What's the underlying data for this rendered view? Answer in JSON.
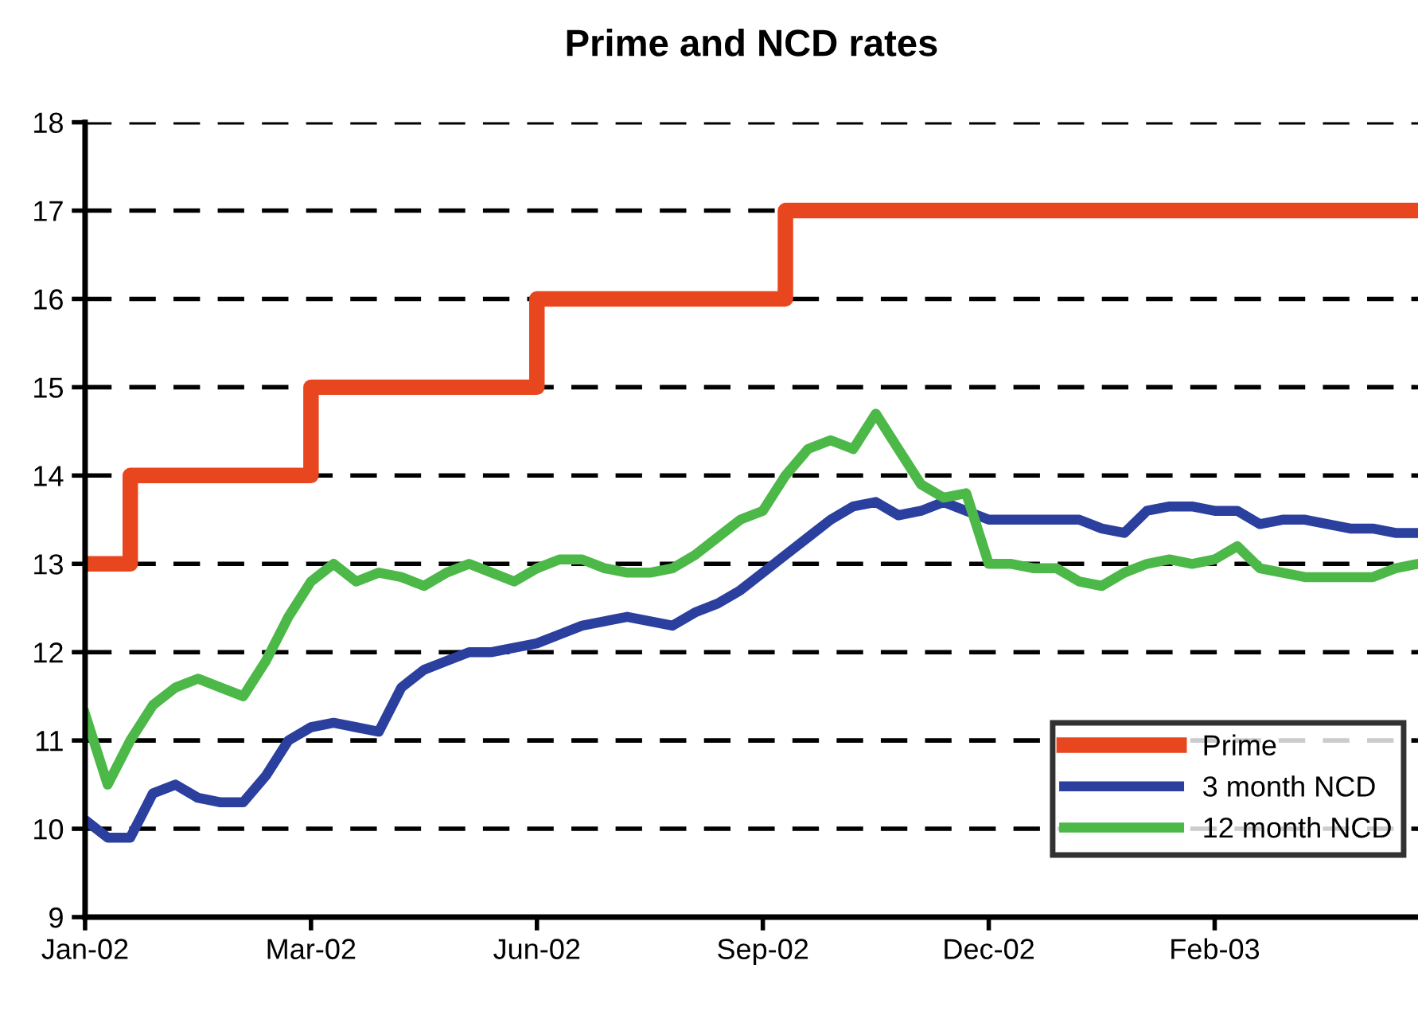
{
  "chart_data": {
    "type": "line",
    "title": "Prime and NCD rates",
    "categories": [
      "Jan-02",
      null,
      null,
      null,
      null,
      null,
      null,
      null,
      null,
      null,
      "Mar-02",
      null,
      null,
      null,
      null,
      null,
      null,
      null,
      null,
      null,
      "Jun-02",
      null,
      null,
      null,
      null,
      null,
      null,
      null,
      null,
      null,
      "Sep-02",
      null,
      null,
      null,
      null,
      null,
      null,
      null,
      null,
      null,
      "Dec-02",
      null,
      null,
      null,
      null,
      null,
      null,
      null,
      null,
      null,
      "Feb-03",
      null,
      null,
      null,
      null,
      null,
      null,
      null,
      null,
      null
    ],
    "ylim": [
      9,
      18
    ],
    "yticks": [
      9,
      10,
      11,
      12,
      13,
      14,
      15,
      16,
      17,
      18
    ],
    "grid": "y",
    "legend": "bottom right",
    "marker": "none",
    "series": [
      {
        "name": "Prime",
        "type": "step",
        "color": "#e8461e",
        "values": [
          13,
          13,
          14,
          14,
          14,
          14,
          14,
          14,
          14,
          14,
          15,
          15,
          15,
          15,
          15,
          15,
          15,
          15,
          15,
          15,
          16,
          16,
          16,
          16,
          16,
          16,
          16,
          16,
          16,
          16,
          16,
          17,
          17,
          17,
          17,
          17,
          17,
          17,
          17,
          17,
          17,
          17,
          17,
          17,
          17,
          17,
          17,
          17,
          17,
          17,
          17,
          17,
          17,
          17,
          17,
          17,
          17,
          17,
          17,
          17
        ]
      },
      {
        "name": "3 month NCD",
        "color": "#2b3f9e",
        "values": [
          10.1,
          9.9,
          9.9,
          10.4,
          10.5,
          10.35,
          10.3,
          10.3,
          10.6,
          11.0,
          11.15,
          11.2,
          11.15,
          11.1,
          11.6,
          11.8,
          11.9,
          12.0,
          12.0,
          12.05,
          12.1,
          12.2,
          12.3,
          12.35,
          12.4,
          12.35,
          12.3,
          12.45,
          12.55,
          12.7,
          12.9,
          13.1,
          13.3,
          13.5,
          13.65,
          13.7,
          13.55,
          13.6,
          13.7,
          13.6,
          13.5,
          13.5,
          13.5,
          13.5,
          13.5,
          13.4,
          13.35,
          13.6,
          13.65,
          13.65,
          13.6,
          13.6,
          13.45,
          13.5,
          13.5,
          13.45,
          13.4,
          13.4,
          13.35,
          13.35
        ]
      },
      {
        "name": "12 month NCD",
        "color": "#4cb848",
        "values": [
          11.3,
          10.5,
          11.0,
          11.4,
          11.6,
          11.7,
          11.6,
          11.5,
          11.9,
          12.4,
          12.8,
          13.0,
          12.8,
          12.9,
          12.85,
          12.75,
          12.9,
          13.0,
          12.9,
          12.8,
          12.95,
          13.05,
          13.05,
          12.95,
          12.9,
          12.9,
          12.95,
          13.1,
          13.3,
          13.5,
          13.6,
          14.0,
          14.3,
          14.4,
          14.3,
          14.7,
          14.3,
          13.9,
          13.75,
          13.8,
          13.0,
          13.0,
          12.95,
          12.95,
          12.8,
          12.75,
          12.9,
          13.0,
          13.05,
          13.0,
          13.05,
          13.2,
          12.95,
          12.9,
          12.85,
          12.85,
          12.85,
          12.85,
          12.95,
          13.0
        ]
      }
    ]
  }
}
